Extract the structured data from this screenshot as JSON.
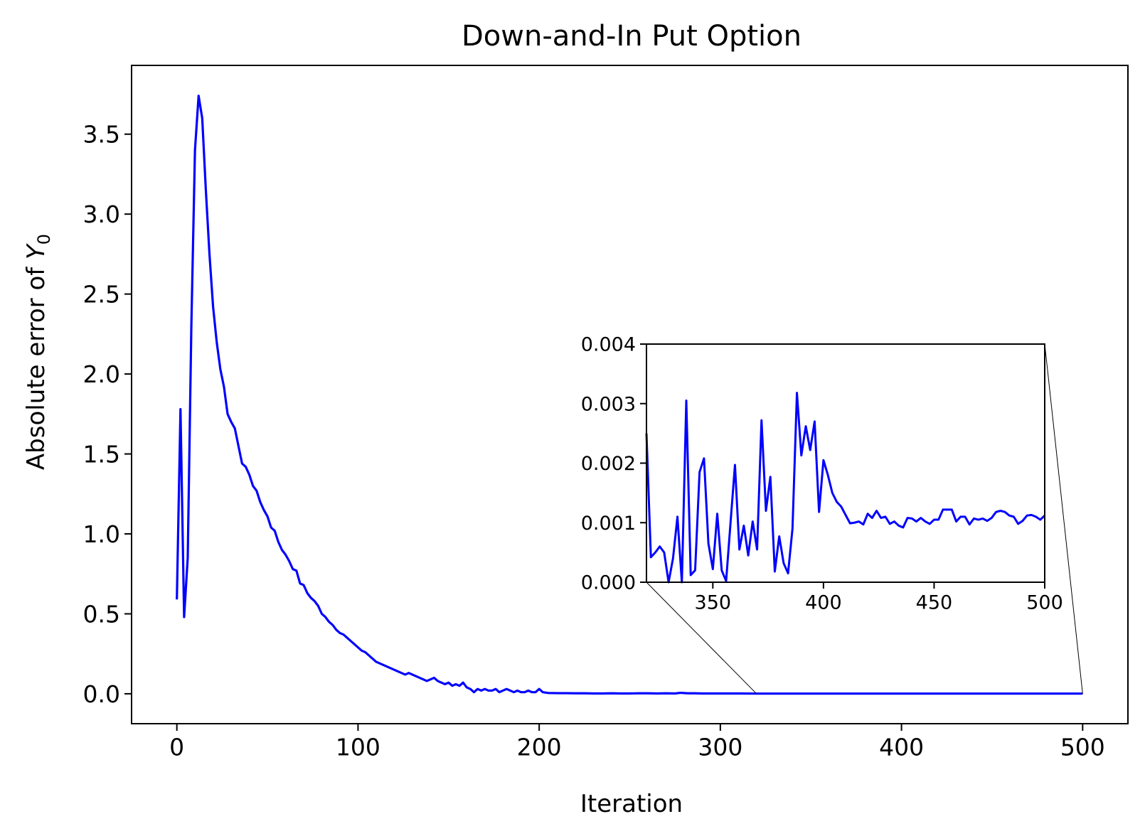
{
  "chart_data": [
    {
      "type": "line",
      "title": "Down-and-In Put Option",
      "xlabel": "Iteration",
      "ylabel_prefix": "Absolute error of ",
      "ylabel_symbol": "Y",
      "ylabel_subscript": "0",
      "xlim": [
        -25,
        525
      ],
      "ylim": [
        -0.187,
        3.93
      ],
      "xticks": [
        0,
        100,
        200,
        300,
        400,
        500
      ],
      "xtick_labels": [
        "0",
        "100",
        "200",
        "300",
        "400",
        "500"
      ],
      "yticks": [
        0.0,
        0.5,
        1.0,
        1.5,
        2.0,
        2.5,
        3.0,
        3.5
      ],
      "ytick_labels": [
        "0.0",
        "0.5",
        "1.0",
        "1.5",
        "2.0",
        "2.5",
        "3.0",
        "3.5"
      ],
      "grid": false,
      "series": [
        {
          "color": "#0000ff",
          "x": [
            0,
            2,
            4,
            6,
            8,
            10,
            12,
            14,
            16,
            18,
            20,
            22,
            24,
            26,
            28,
            30,
            32,
            34,
            36,
            38,
            40,
            42,
            44,
            46,
            48,
            50,
            52,
            54,
            56,
            58,
            60,
            62,
            64,
            66,
            68,
            70,
            72,
            74,
            76,
            78,
            80,
            82,
            84,
            86,
            88,
            90,
            92,
            94,
            96,
            98,
            100,
            102,
            104,
            106,
            108,
            110,
            112,
            114,
            116,
            118,
            120,
            122,
            124,
            126,
            128,
            130,
            132,
            134,
            136,
            138,
            140,
            142,
            144,
            146,
            148,
            150,
            152,
            154,
            156,
            158,
            160,
            162,
            164,
            166,
            168,
            170,
            172,
            174,
            176,
            178,
            180,
            182,
            184,
            186,
            188,
            190,
            192,
            194,
            196,
            198,
            200,
            202,
            205,
            210,
            215,
            220,
            225,
            230,
            235,
            240,
            245,
            250,
            255,
            260,
            265,
            270,
            275,
            278,
            282,
            286,
            290,
            295,
            300,
            305,
            310,
            320,
            330,
            340,
            350,
            360,
            370,
            380,
            390,
            400,
            410,
            420,
            430,
            440,
            450,
            460,
            470,
            480,
            490,
            500
          ],
          "y": [
            0.59,
            1.78,
            0.48,
            0.85,
            2.3,
            3.4,
            3.74,
            3.6,
            3.15,
            2.75,
            2.42,
            2.2,
            2.03,
            1.92,
            1.75,
            1.7,
            1.66,
            1.55,
            1.44,
            1.42,
            1.37,
            1.3,
            1.27,
            1.2,
            1.15,
            1.11,
            1.04,
            1.02,
            0.95,
            0.9,
            0.87,
            0.83,
            0.78,
            0.77,
            0.69,
            0.68,
            0.63,
            0.6,
            0.58,
            0.55,
            0.5,
            0.48,
            0.45,
            0.43,
            0.4,
            0.38,
            0.37,
            0.35,
            0.33,
            0.31,
            0.29,
            0.27,
            0.26,
            0.24,
            0.22,
            0.2,
            0.19,
            0.18,
            0.17,
            0.16,
            0.15,
            0.14,
            0.13,
            0.12,
            0.13,
            0.12,
            0.11,
            0.1,
            0.09,
            0.08,
            0.09,
            0.1,
            0.08,
            0.07,
            0.06,
            0.07,
            0.05,
            0.06,
            0.05,
            0.07,
            0.04,
            0.03,
            0.01,
            0.03,
            0.02,
            0.03,
            0.02,
            0.02,
            0.03,
            0.01,
            0.02,
            0.03,
            0.02,
            0.01,
            0.02,
            0.01,
            0.01,
            0.02,
            0.01,
            0.01,
            0.03,
            0.01,
            0.005,
            0.004,
            0.004,
            0.003,
            0.003,
            0.002,
            0.002,
            0.003,
            0.002,
            0.002,
            0.003,
            0.003,
            0.002,
            0.003,
            0.002,
            0.006,
            0.003,
            0.003,
            0.002,
            0.002,
            0.002,
            0.002,
            0.002,
            0.001,
            0.001,
            0.001,
            0.001,
            0.001,
            0.001,
            0.001,
            0.001,
            0.001,
            0.001,
            0.001,
            0.001,
            0.001,
            0.001,
            0.001,
            0.001,
            0.001,
            0.001,
            0.001
          ]
        }
      ]
    },
    {
      "type": "line",
      "inset": true,
      "xlim": [
        320,
        500
      ],
      "ylim": [
        0,
        0.004
      ],
      "xticks": [
        350,
        400,
        450,
        500
      ],
      "xtick_labels": [
        "350",
        "400",
        "450",
        "500"
      ],
      "yticks": [
        0,
        0.001,
        0.002,
        0.003,
        0.004
      ],
      "ytick_labels": [
        "0.000",
        "0.001",
        "0.002",
        "0.003",
        "0.004"
      ],
      "grid": false,
      "series": [
        {
          "color": "#0000ff",
          "x": [
            320,
            322,
            324,
            326,
            328,
            330,
            332,
            334,
            336,
            338,
            340,
            342,
            344,
            346,
            348,
            350,
            352,
            354,
            356,
            358,
            360,
            362,
            364,
            366,
            368,
            370,
            372,
            374,
            376,
            378,
            380,
            382,
            384,
            386,
            388,
            390,
            392,
            394,
            396,
            398,
            400,
            402,
            404,
            406,
            408,
            410,
            412,
            414,
            416,
            418,
            420,
            422,
            424,
            426,
            428,
            430,
            432,
            434,
            436,
            438,
            440,
            442,
            444,
            446,
            448,
            450,
            452,
            454,
            456,
            458,
            460,
            462,
            464,
            466,
            468,
            470,
            472,
            474,
            476,
            478,
            480,
            482,
            484,
            486,
            488,
            490,
            492,
            494,
            496,
            498,
            500
          ],
          "y": [
            0.0025,
            0.00042,
            0.0005,
            0.0006,
            0.0005,
            0.0,
            0.0004,
            0.0011,
            0.0,
            0.00305,
            0.00012,
            0.0002,
            0.00185,
            0.00208,
            0.00065,
            0.00022,
            0.00115,
            0.0002,
            2e-05,
            0.001,
            0.00197,
            0.00055,
            0.00095,
            0.00045,
            0.00102,
            0.00055,
            0.00272,
            0.0012,
            0.00177,
            0.00018,
            0.00077,
            0.00032,
            0.00015,
            0.0009,
            0.00318,
            0.00213,
            0.00262,
            0.00222,
            0.0027,
            0.00118,
            0.00205,
            0.0018,
            0.0015,
            0.00135,
            0.00127,
            0.00113,
            0.00099,
            0.001,
            0.00102,
            0.00097,
            0.00115,
            0.00108,
            0.0012,
            0.00108,
            0.0011,
            0.00098,
            0.00102,
            0.00095,
            0.00092,
            0.00108,
            0.00107,
            0.00102,
            0.00108,
            0.00102,
            0.00098,
            0.00105,
            0.00105,
            0.00122,
            0.00122,
            0.00122,
            0.00102,
            0.0011,
            0.0011,
            0.00097,
            0.00107,
            0.00105,
            0.00107,
            0.00103,
            0.00108,
            0.00118,
            0.0012,
            0.00118,
            0.00112,
            0.0011,
            0.00098,
            0.00103,
            0.00112,
            0.00113,
            0.0011,
            0.00105,
            0.00112
          ]
        }
      ]
    }
  ]
}
